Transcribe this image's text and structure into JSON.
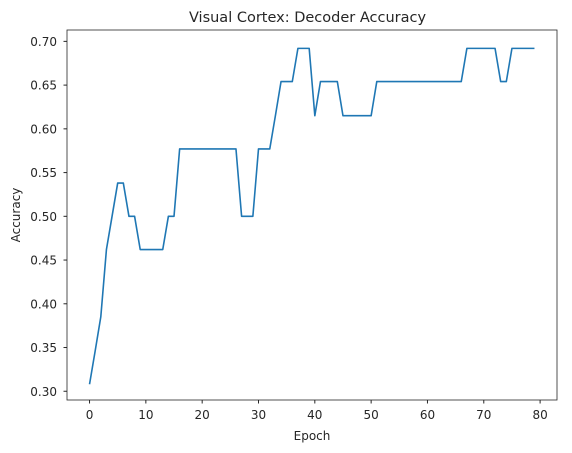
{
  "chart_data": {
    "type": "line",
    "title": "Visual Cortex: Decoder Accuracy",
    "xlabel": "Epoch",
    "ylabel": "Accuracy",
    "xlim": [
      -4,
      83
    ],
    "ylim": [
      0.29,
      0.713
    ],
    "x_ticks": [
      0,
      10,
      20,
      30,
      40,
      50,
      60,
      70,
      80
    ],
    "y_ticks": [
      "0.30",
      "0.35",
      "0.40",
      "0.45",
      "0.50",
      "0.55",
      "0.60",
      "0.65",
      "0.70"
    ],
    "grid": false,
    "line_color": "#1f77b4",
    "series": [
      {
        "x": [
          0,
          1,
          2,
          3,
          4,
          5,
          6,
          7,
          8,
          9,
          10,
          11,
          12,
          13,
          14,
          15,
          16,
          17,
          18,
          19,
          20,
          21,
          22,
          23,
          24,
          25,
          26,
          27,
          28,
          29,
          30,
          31,
          32,
          33,
          34,
          35,
          36,
          37,
          38,
          39,
          40,
          41,
          42,
          43,
          44,
          45,
          46,
          47,
          48,
          49,
          50,
          51,
          52,
          53,
          54,
          55,
          56,
          57,
          58,
          59,
          60,
          61,
          62,
          63,
          64,
          65,
          66,
          67,
          68,
          69,
          70,
          71,
          72,
          73,
          74,
          75,
          76,
          77,
          78,
          79
        ],
        "values": [
          0.308,
          0.346,
          0.385,
          0.462,
          0.5,
          0.538,
          0.538,
          0.5,
          0.5,
          0.462,
          0.462,
          0.462,
          0.462,
          0.462,
          0.5,
          0.5,
          0.577,
          0.577,
          0.577,
          0.577,
          0.577,
          0.577,
          0.577,
          0.577,
          0.577,
          0.577,
          0.577,
          0.5,
          0.5,
          0.5,
          0.577,
          0.577,
          0.577,
          0.615,
          0.654,
          0.654,
          0.654,
          0.692,
          0.692,
          0.692,
          0.615,
          0.654,
          0.654,
          0.654,
          0.654,
          0.615,
          0.615,
          0.615,
          0.615,
          0.615,
          0.615,
          0.654,
          0.654,
          0.654,
          0.654,
          0.654,
          0.654,
          0.654,
          0.654,
          0.654,
          0.654,
          0.654,
          0.654,
          0.654,
          0.654,
          0.654,
          0.654,
          0.692,
          0.692,
          0.692,
          0.692,
          0.692,
          0.692,
          0.654,
          0.654,
          0.692,
          0.692,
          0.692,
          0.692,
          0.692
        ]
      }
    ]
  }
}
